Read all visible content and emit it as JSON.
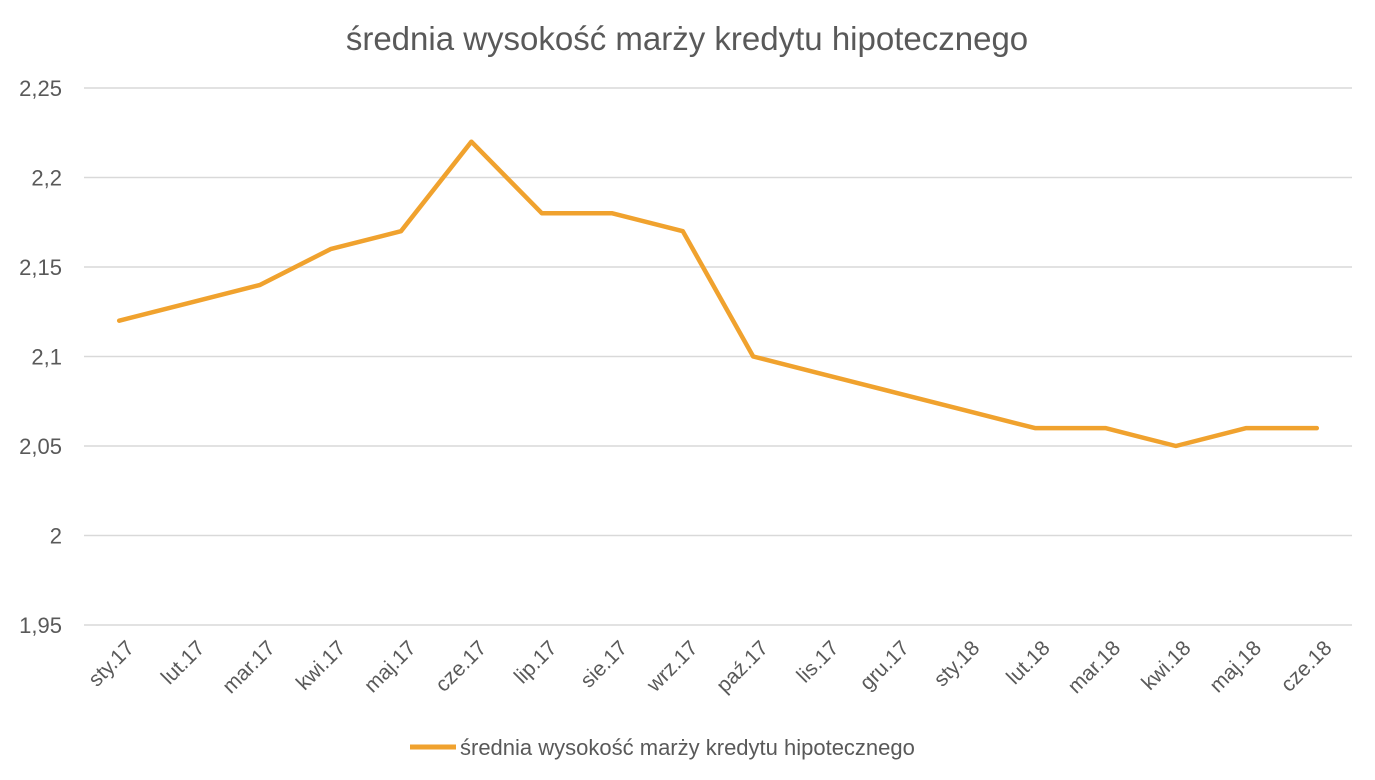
{
  "chart_data": {
    "type": "line",
    "title": "średnia wysokość marży kredytu hipotecznego",
    "xlabel": "",
    "ylabel": "",
    "categories": [
      "sty.17",
      "lut.17",
      "mar.17",
      "kwi.17",
      "maj.17",
      "cze.17",
      "lip.17",
      "sie.17",
      "wrz.17",
      "paź.17",
      "lis.17",
      "gru.17",
      "sty.18",
      "lut.18",
      "mar.18",
      "kwi.18",
      "maj.18",
      "cze.18"
    ],
    "series": [
      {
        "name": "średnia wysokość marży kredytu hipotecznego",
        "values": [
          2.12,
          2.13,
          2.14,
          2.16,
          2.17,
          2.22,
          2.18,
          2.18,
          2.17,
          2.1,
          2.09,
          2.08,
          2.07,
          2.06,
          2.06,
          2.05,
          2.06,
          2.06
        ],
        "color": "#f0a22e"
      }
    ],
    "ylim": [
      1.95,
      2.25
    ],
    "yticks": [
      "2,25",
      "2,2",
      "2,15",
      "2,1",
      "2,05",
      "2",
      "1,95"
    ],
    "grid": true,
    "legend_position": "bottom"
  }
}
